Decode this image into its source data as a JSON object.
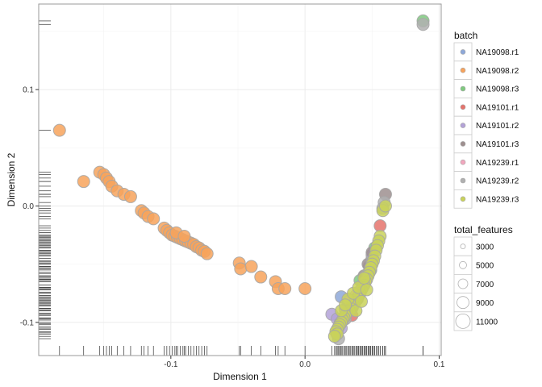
{
  "chart_data": {
    "type": "scatter",
    "xlabel": "Dimension 1",
    "ylabel": "Dimension 2",
    "xlim": [
      -0.1985,
      0.1015
    ],
    "ylim": [
      -0.1285,
      0.1735
    ],
    "x_ticks": [
      {
        "v": -0.1,
        "label": "-0.1"
      },
      {
        "v": 0.0,
        "label": "0.0"
      },
      {
        "v": 0.1,
        "label": "0.1"
      }
    ],
    "y_ticks": [
      {
        "v": -0.1,
        "label": "-0.1"
      },
      {
        "v": 0.0,
        "label": "0.0"
      },
      {
        "v": 0.1,
        "label": "0.1"
      }
    ],
    "grid": true,
    "rug": true,
    "color_legend": {
      "title": "batch",
      "entries": [
        {
          "name": "NA19098.r1",
          "color": "#8EA8D8"
        },
        {
          "name": "NA19098.r2",
          "color": "#F7A35C"
        },
        {
          "name": "NA19098.r3",
          "color": "#7FC97F"
        },
        {
          "name": "NA19101.r1",
          "color": "#E5736C"
        },
        {
          "name": "NA19101.r2",
          "color": "#B3A2D8"
        },
        {
          "name": "NA19101.r3",
          "color": "#9E8F8F"
        },
        {
          "name": "NA19239.r1",
          "color": "#F2A7BE"
        },
        {
          "name": "NA19239.r2",
          "color": "#B0B0B0"
        },
        {
          "name": "NA19239.r3",
          "color": "#C9D25A"
        }
      ]
    },
    "size_legend": {
      "title": "total_features",
      "entries": [
        {
          "label": "3000",
          "value": 3000
        },
        {
          "label": "5000",
          "value": 5000
        },
        {
          "label": "7000",
          "value": 7000
        },
        {
          "label": "9000",
          "value": 9000
        },
        {
          "label": "11000",
          "value": 11000
        }
      ]
    },
    "series": [
      {
        "name": "NA19098.r2",
        "points": [
          [
            -0.183,
            0.065
          ],
          [
            -0.165,
            0.021
          ],
          [
            -0.153,
            0.029
          ],
          [
            -0.15,
            0.027
          ],
          [
            -0.148,
            0.024
          ],
          [
            -0.146,
            0.021
          ],
          [
            -0.144,
            0.017
          ],
          [
            -0.14,
            0.013
          ],
          [
            -0.135,
            0.01
          ],
          [
            -0.13,
            0.008
          ],
          [
            -0.122,
            -0.004
          ],
          [
            -0.12,
            -0.006
          ],
          [
            -0.117,
            -0.009
          ],
          [
            -0.113,
            -0.011
          ],
          [
            -0.105,
            -0.019
          ],
          [
            -0.103,
            -0.021
          ],
          [
            -0.101,
            -0.023
          ],
          [
            -0.099,
            -0.025
          ],
          [
            -0.097,
            -0.026
          ],
          [
            -0.095,
            -0.027
          ],
          [
            -0.093,
            -0.028
          ],
          [
            -0.091,
            -0.029
          ],
          [
            -0.089,
            -0.03
          ],
          [
            -0.087,
            -0.031
          ],
          [
            -0.085,
            -0.032
          ],
          [
            -0.083,
            -0.033
          ],
          [
            -0.081,
            -0.035
          ],
          [
            -0.079,
            -0.036
          ],
          [
            -0.077,
            -0.038
          ],
          [
            -0.075,
            -0.039
          ],
          [
            -0.073,
            -0.041
          ],
          [
            -0.096,
            -0.023
          ],
          [
            -0.09,
            -0.026
          ],
          [
            -0.049,
            -0.049
          ],
          [
            -0.048,
            -0.054
          ],
          [
            -0.04,
            -0.052
          ],
          [
            -0.033,
            -0.061
          ],
          [
            -0.022,
            -0.065
          ],
          [
            -0.02,
            -0.071
          ],
          [
            -0.015,
            -0.071
          ],
          [
            0.0,
            -0.071
          ]
        ]
      },
      {
        "name": "NA19098.r1",
        "points": [
          [
            0.027,
            -0.078
          ],
          [
            0.032,
            -0.084
          ],
          [
            0.04,
            -0.074
          ]
        ]
      },
      {
        "name": "NA19098.r3",
        "points": [
          [
            0.088,
            0.159
          ],
          [
            0.052,
            -0.036
          ],
          [
            0.05,
            -0.045
          ],
          [
            0.049,
            -0.055
          ],
          [
            0.041,
            -0.064
          ]
        ]
      },
      {
        "name": "NA19101.r1",
        "points": [
          [
            0.056,
            -0.017
          ],
          [
            0.035,
            -0.094
          ]
        ]
      },
      {
        "name": "NA19101.r2",
        "points": [
          [
            0.02,
            -0.093
          ],
          [
            0.024,
            -0.097
          ],
          [
            0.027,
            -0.105
          ],
          [
            0.03,
            -0.089
          ],
          [
            0.045,
            -0.063
          ],
          [
            0.048,
            -0.052
          ],
          [
            0.05,
            -0.042
          ]
        ]
      },
      {
        "name": "NA19101.r3",
        "points": [
          [
            0.06,
            0.01
          ],
          [
            0.05,
            -0.04
          ],
          [
            0.047,
            -0.05
          ],
          [
            0.044,
            -0.06
          ]
        ]
      },
      {
        "name": "NA19239.r1",
        "points": [
          [
            0.033,
            -0.082
          ],
          [
            0.038,
            -0.077
          ]
        ]
      },
      {
        "name": "NA19239.r2",
        "points": [
          [
            0.088,
            0.156
          ],
          [
            0.059,
            0.003
          ],
          [
            0.058,
            -0.002
          ],
          [
            0.05,
            -0.048
          ],
          [
            0.047,
            -0.058
          ],
          [
            0.043,
            -0.068
          ],
          [
            0.039,
            -0.08
          ],
          [
            0.035,
            -0.088
          ],
          [
            0.03,
            -0.097
          ],
          [
            0.026,
            -0.101
          ],
          [
            0.024,
            -0.109
          ],
          [
            0.025,
            -0.114
          ]
        ]
      },
      {
        "name": "NA19239.r3",
        "points": [
          [
            0.058,
            -0.004
          ],
          [
            0.06,
            0.0
          ],
          [
            0.056,
            -0.026
          ],
          [
            0.055,
            -0.03
          ],
          [
            0.054,
            -0.034
          ],
          [
            0.053,
            -0.038
          ],
          [
            0.052,
            -0.043
          ],
          [
            0.051,
            -0.047
          ],
          [
            0.05,
            -0.05
          ],
          [
            0.049,
            -0.053
          ],
          [
            0.048,
            -0.057
          ],
          [
            0.047,
            -0.06
          ],
          [
            0.046,
            -0.063
          ],
          [
            0.045,
            -0.065
          ],
          [
            0.044,
            -0.068
          ],
          [
            0.043,
            -0.07
          ],
          [
            0.042,
            -0.072
          ],
          [
            0.041,
            -0.075
          ],
          [
            0.04,
            -0.077
          ],
          [
            0.039,
            -0.079
          ],
          [
            0.038,
            -0.081
          ],
          [
            0.037,
            -0.083
          ],
          [
            0.036,
            -0.085
          ],
          [
            0.035,
            -0.086
          ],
          [
            0.034,
            -0.088
          ],
          [
            0.033,
            -0.09
          ],
          [
            0.031,
            -0.092
          ],
          [
            0.03,
            -0.094
          ],
          [
            0.029,
            -0.096
          ],
          [
            0.028,
            -0.098
          ],
          [
            0.027,
            -0.1
          ],
          [
            0.026,
            -0.102
          ],
          [
            0.025,
            -0.104
          ],
          [
            0.024,
            -0.106
          ],
          [
            0.023,
            -0.108
          ],
          [
            0.024,
            -0.11
          ],
          [
            0.022,
            -0.112
          ],
          [
            0.032,
            -0.08
          ],
          [
            0.036,
            -0.075
          ],
          [
            0.04,
            -0.07
          ],
          [
            0.044,
            -0.062
          ],
          [
            0.027,
            -0.09
          ],
          [
            0.038,
            -0.09
          ],
          [
            0.042,
            -0.082
          ],
          [
            0.046,
            -0.072
          ],
          [
            0.03,
            -0.085
          ]
        ]
      }
    ]
  }
}
